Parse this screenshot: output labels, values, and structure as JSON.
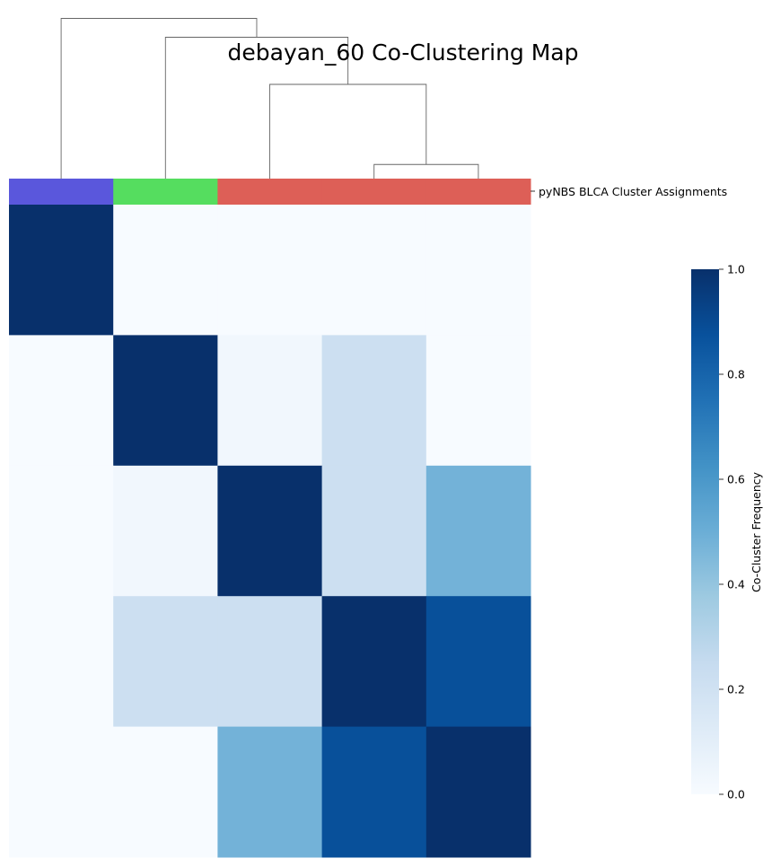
{
  "chart_data": {
    "type": "heatmap",
    "title": "debayan_60 Co-Clustering Map",
    "row_color_label": "pyNBS BLCA Cluster Assignments",
    "colorbar": {
      "label": "Co-Cluster Frequency",
      "min": 0.0,
      "max": 1.0,
      "ticks": [
        "0.0",
        "0.2",
        "0.4",
        "0.6",
        "0.8",
        "1.0"
      ],
      "colormap": "Blues"
    },
    "cluster_assignment_colors": [
      "#5a57dc",
      "#55dd5f",
      "#dd5f57",
      "#dd5f57",
      "#dd5f57"
    ],
    "matrix": [
      [
        1.0,
        0.0,
        0.0,
        0.0,
        0.0
      ],
      [
        0.0,
        1.0,
        0.03,
        0.22,
        0.0
      ],
      [
        0.0,
        0.03,
        1.0,
        0.22,
        0.48
      ],
      [
        0.0,
        0.22,
        0.22,
        1.0,
        0.88
      ],
      [
        0.0,
        0.0,
        0.48,
        0.88,
        1.0
      ]
    ],
    "dendrogram": [
      {
        "left": 3,
        "right": 4,
        "height": 0.15
      },
      {
        "left": 2,
        "right": "3+4",
        "height": 1.0
      },
      {
        "left": 1,
        "right": "2+3+4",
        "height": 1.5
      },
      {
        "left": 0,
        "right": "1+2+3+4",
        "height": 1.7
      }
    ],
    "grid": false
  }
}
